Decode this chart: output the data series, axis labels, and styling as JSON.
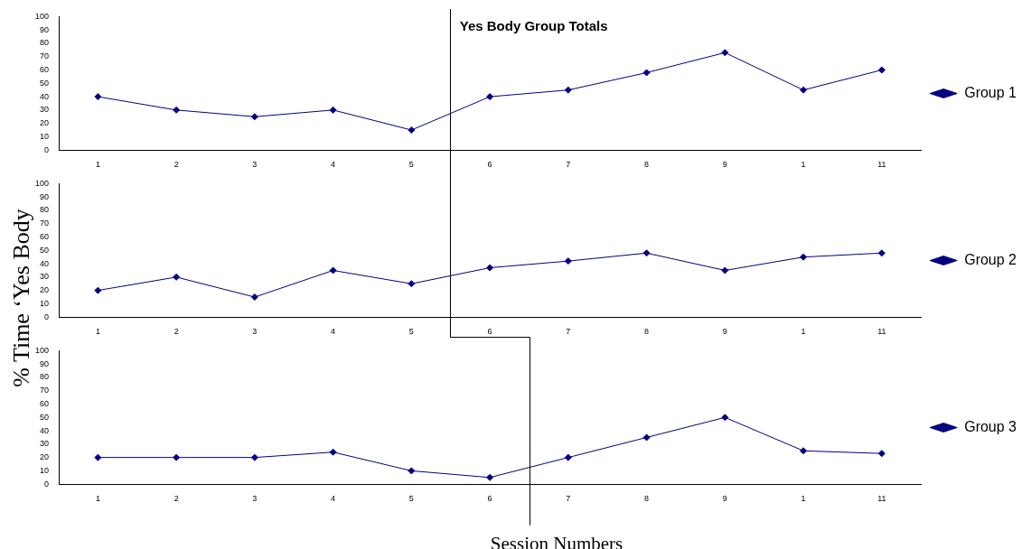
{
  "chart_data": [
    {
      "type": "line",
      "title": "Yes Body Group Totals",
      "categories": [
        "1",
        "2",
        "3",
        "4",
        "5",
        "6",
        "7",
        "8",
        "9",
        "1",
        "11"
      ],
      "series": [
        {
          "name": "Group 1",
          "color": "#000080",
          "values": [
            40,
            30,
            25,
            30,
            15,
            40,
            45,
            58,
            73,
            45,
            60
          ]
        }
      ],
      "ylim": [
        0,
        100
      ],
      "yticks": [
        0,
        10,
        20,
        30,
        40,
        50,
        60,
        70,
        80,
        90,
        100
      ],
      "grid": false,
      "legend": "right",
      "marker": "diamond",
      "line_style": "solid"
    },
    {
      "type": "line",
      "ylabel": "% Time ‘Yes Body",
      "categories": [
        "1",
        "2",
        "3",
        "4",
        "5",
        "6",
        "7",
        "8",
        "9",
        "1",
        "11"
      ],
      "series": [
        {
          "name": "Group 2",
          "color": "#000080",
          "values": [
            20,
            30,
            15,
            35,
            25,
            37,
            42,
            48,
            35,
            45,
            48
          ]
        }
      ],
      "ylim": [
        0,
        100
      ],
      "yticks": [
        0,
        10,
        20,
        30,
        40,
        50,
        60,
        70,
        80,
        90,
        100
      ],
      "grid": false,
      "legend": "right",
      "marker": "diamond",
      "line_style": "solid"
    },
    {
      "type": "line",
      "xlabel": "Session Numbers",
      "categories": [
        "1",
        "2",
        "3",
        "4",
        "5",
        "6",
        "7",
        "8",
        "9",
        "1",
        "11"
      ],
      "series": [
        {
          "name": "Group 3",
          "color": "#000080",
          "values": [
            20,
            20,
            20,
            24,
            10,
            5,
            20,
            35,
            50,
            25,
            23
          ]
        }
      ],
      "ylim": [
        0,
        100
      ],
      "yticks": [
        0,
        10,
        20,
        30,
        40,
        50,
        60,
        70,
        80,
        90,
        100
      ],
      "grid": false,
      "legend": "right",
      "marker": "diamond",
      "line_style": "solid"
    }
  ]
}
